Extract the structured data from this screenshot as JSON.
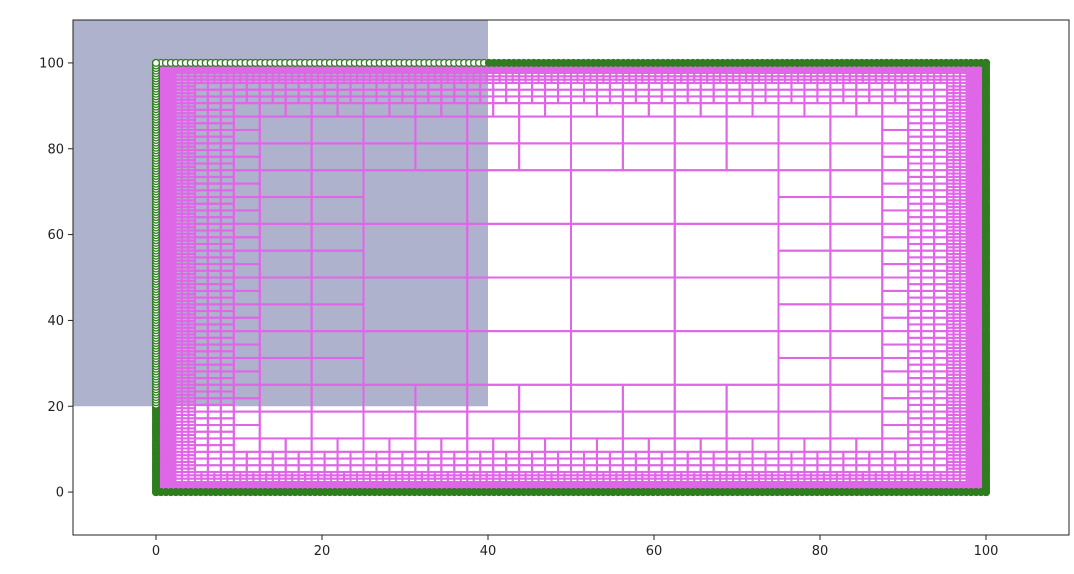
{
  "chart_data": {
    "type": "scatter",
    "title": "",
    "xlabel": "",
    "ylabel": "",
    "xlim": [
      -10,
      110
    ],
    "ylim": [
      -10,
      110
    ],
    "x_ticks": [
      0,
      20,
      40,
      60,
      80,
      100
    ],
    "y_ticks": [
      0,
      20,
      40,
      60,
      80,
      100
    ],
    "grid": false,
    "legend": "none",
    "shaded_region": {
      "x": [
        -10,
        40
      ],
      "y": [
        20,
        110
      ],
      "color": "#aeb2cc"
    },
    "boundary_points": {
      "spacing": 0.6,
      "color": "#2e7d1f",
      "inside_fill": "#ffffff",
      "outside_fill": "#2e7d1f",
      "sides": [
        {
          "name": "bottom",
          "from": [
            0,
            0
          ],
          "to": [
            100,
            0
          ]
        },
        {
          "name": "top",
          "from": [
            0,
            100
          ],
          "to": [
            100,
            100
          ]
        },
        {
          "name": "left",
          "from": [
            0,
            0
          ],
          "to": [
            0,
            100
          ]
        },
        {
          "name": "right",
          "from": [
            100,
            0
          ],
          "to": [
            100,
            100
          ]
        }
      ]
    },
    "quadtree": {
      "domain": [
        0,
        0,
        100,
        100
      ],
      "max_depth": 8,
      "color": "#e066e8",
      "boundary_depth": [
        {
          "max_dist": 1.6,
          "depth": 8
        },
        {
          "max_dist": 3.2,
          "depth": 7
        },
        {
          "max_dist": 6.3,
          "depth": 6
        },
        {
          "max_dist": 12.5,
          "depth": 5
        },
        {
          "max_dist": 25,
          "depth": 4
        },
        {
          "max_dist": 100,
          "depth": 3
        }
      ]
    }
  }
}
